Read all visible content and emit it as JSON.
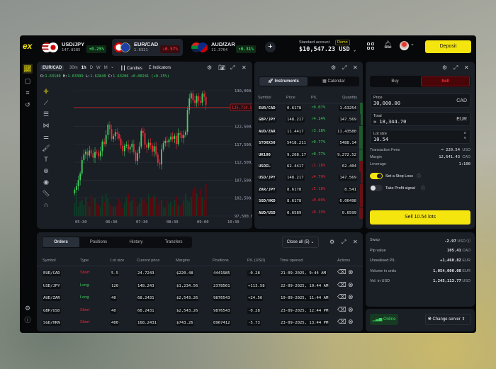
{
  "header": {
    "logo": "ex",
    "tickers": [
      {
        "symbol": "USD/JPY",
        "price": "147.8285",
        "change": "↑0.25%",
        "dir": "up",
        "active": false
      },
      {
        "symbol": "EUR/CAD",
        "price": "1.6321",
        "change": "↓0.57%",
        "dir": "down",
        "active": true
      },
      {
        "symbol": "AUD/ZAR",
        "price": "11.3764",
        "change": "↑0.31%",
        "dir": "up",
        "active": false
      }
    ],
    "add_icon": "plus-icon",
    "account_label": "Standard account",
    "account_badge": "Demo",
    "balance": "$10,547.23 USD",
    "deposit_label": "Deposit"
  },
  "colors": {
    "accent": "#f5e50f",
    "up": "#3ed35e",
    "down": "#ee2a36",
    "panel": "#1a1e25"
  },
  "chart": {
    "symbol": "EUR/CAD",
    "timeframes": [
      "30m",
      "1h",
      "D",
      "W",
      "M"
    ],
    "active_timeframe": "1h",
    "candles_label": "Candles",
    "indicators_label": "Indicators",
    "ohlc": {
      "o_label": "O:",
      "o": "1.63180",
      "h_label": "H:",
      "h": "1.63399",
      "l_label": "L:",
      "l": "1.62840",
      "c_label": "C:",
      "c": "1.63206",
      "change": "+0.00241 (+0.15%)"
    },
    "price_tag": "125,714.53"
  },
  "chart_data": {
    "type": "candlestick",
    "x_ticks": [
      "05:30",
      "06:30",
      "07:30",
      "08:30",
      "09:00",
      "10:30"
    ],
    "y_ticks": [
      "130,000.00",
      "",
      "122,500.00",
      "117,500.00",
      "112,500.00",
      "107,500.00",
      "102,500.00",
      "97,500.00"
    ],
    "ylim": [
      97500,
      130000
    ],
    "current_price": 125714.53,
    "closes": [
      104300,
      105200,
      106800,
      108500,
      112000,
      113500,
      114200,
      113200,
      114500,
      113800,
      112600,
      114100,
      113900,
      113000,
      114300,
      116800,
      116200,
      118500,
      121200,
      120000,
      117500,
      118200,
      119200,
      118800,
      117600,
      115800,
      114300,
      115700,
      116000,
      114800,
      115400,
      116200,
      114000,
      111800,
      113800,
      115500,
      119600,
      119000,
      116000,
      115200,
      116500,
      115800,
      114200,
      115600,
      113400,
      111300,
      110900,
      114800,
      116400,
      117000,
      116600,
      117300,
      118100,
      117500,
      118300,
      116200,
      119000,
      118600,
      117700,
      118500,
      119300,
      125000,
      128000,
      129300,
      127500,
      126800,
      128600,
      127300,
      126900,
      129200,
      128400,
      126300
    ],
    "volume": [
      40,
      70,
      30,
      45,
      50,
      35,
      60,
      45,
      30,
      65,
      55,
      55,
      40,
      35,
      30,
      65,
      45,
      70,
      55,
      40,
      30,
      30,
      30,
      35,
      55,
      45,
      25,
      40,
      60,
      70,
      45,
      50,
      60,
      45,
      30,
      40,
      55,
      50,
      55,
      40,
      70,
      55,
      60,
      65,
      60,
      35,
      50,
      50,
      30,
      25,
      50,
      40,
      45,
      30,
      50,
      60,
      35,
      30,
      40,
      50,
      70,
      50,
      45,
      60,
      80,
      90,
      70,
      60,
      85,
      60,
      50,
      100
    ]
  },
  "tools": [
    "crosshair-icon",
    "trendline-icon",
    "parallel-lines-icon",
    "pattern-icon",
    "sliders-icon",
    "brush-icon",
    "text-icon",
    "zoom-in-icon",
    "eye-icon",
    "ruler-icon",
    "magnet-icon"
  ],
  "instruments": {
    "tabs": [
      "Instruments",
      "Calendar"
    ],
    "columns": [
      "Symbol",
      "Price",
      "P/L",
      "Quantity"
    ],
    "rows": [
      {
        "symbol": "EUR/CAD",
        "price": "0.6178",
        "pl": "↑0.07%",
        "qty": "1.63254",
        "dir": "up",
        "depth": 0.7
      },
      {
        "symbol": "GBP/JPY",
        "price": "148.217",
        "pl": "↑4.14%",
        "qty": "147.569",
        "dir": "up",
        "depth": 0.5
      },
      {
        "symbol": "AUD/ZAR",
        "price": "11.4417",
        "pl": "↑3.18%",
        "qty": "11.43580",
        "dir": "up",
        "depth": 0.9
      },
      {
        "symbol": "STOXX50",
        "price": "5418.211",
        "pl": "↑0.77%",
        "qty": "5488.14",
        "dir": "up",
        "depth": 0.8
      },
      {
        "symbol": "UK100",
        "price": "9,268.17",
        "pl": "↑0.77%",
        "qty": "9,272.52",
        "dir": "up",
        "depth": 0.8
      },
      {
        "symbol": "USOIL",
        "price": "62.4417",
        "pl": "↓1.18%",
        "qty": "62.404",
        "dir": "down",
        "depth": 0.9
      },
      {
        "symbol": "USD/JPY",
        "price": "148.217",
        "pl": "↓4.79%",
        "qty": "147.569",
        "dir": "down",
        "depth": 0.5
      },
      {
        "symbol": "ZAR/JPY",
        "price": "8.6178",
        "pl": "↓5.18%",
        "qty": "8.541",
        "dir": "down",
        "depth": 0.7
      },
      {
        "symbol": "SGD/HKD",
        "price": "8.6178",
        "pl": "↓0.09%",
        "qty": "6.06498",
        "dir": "down",
        "depth": 0.6
      },
      {
        "symbol": "AUD/USD",
        "price": "0.6589",
        "pl": "↓0.13%",
        "qty": "0.6599",
        "dir": "down",
        "depth": 0.9
      }
    ]
  },
  "order_form": {
    "buy_label": "Buy",
    "sell_label": "Sell",
    "active_side": "Sell",
    "price_label": "Price",
    "price_value": "30,000.00",
    "price_ccy": "CAD",
    "total_label": "Total",
    "total_value": "≈ 18,344.70",
    "total_ccy": "EUR",
    "lot_label": "Lot size",
    "lot_value": "10.54",
    "fees_label": "Transaction Fees",
    "fees_value": "≈ 220.54",
    "fees_ccy": "USD",
    "margin_label": "Margin",
    "margin_value": "12,641.43",
    "margin_ccy": "CAD",
    "leverage_label": "Leverage",
    "leverage_value": "1:100",
    "stop_loss_label": "Set a Stop Loss",
    "stop_loss_on": true,
    "take_profit_label": "Take Profit signal",
    "take_profit_on": false,
    "submit_label": "Sell 10.54 lots"
  },
  "summary": [
    {
      "label": "Swap",
      "value": "-2.97",
      "ccy": "USD"
    },
    {
      "label": "Pip value",
      "value": "105.41",
      "ccy": "CAD"
    },
    {
      "label": "Unrealised P/L",
      "value": "+1,460.82",
      "ccy": "EUR"
    },
    {
      "label": "Volume in units",
      "value": "1,054,000.00",
      "ccy": "EUR"
    },
    {
      "label": "Vol. in USD",
      "value": "1,245,113.77",
      "ccy": "USD"
    }
  ],
  "status": {
    "online_label": "Online",
    "server_label": "Change server"
  },
  "orders": {
    "tabs": [
      "Orders",
      "Positions",
      "History",
      "Transfers"
    ],
    "close_all_label": "Close all (5)",
    "columns": [
      "Symbol",
      "Type",
      "Lot size",
      "Current price",
      "Margins",
      "Positions",
      "P/L (USD)",
      "Time opened",
      "Actions"
    ],
    "rows": [
      {
        "symbol": "EUR/CAD",
        "type": "Short",
        "lot": "5.5",
        "price": "24.7243",
        "margin": "$220.48",
        "position": "4441985",
        "pl": "-0.28",
        "time": "21-09-2025, 9:44 AM"
      },
      {
        "symbol": "USD/JPY",
        "type": "Long",
        "lot": "120",
        "price": "148.243",
        "margin": "$1,234.56",
        "position": "2378561",
        "pl": "+113.58",
        "time": "22-09-2025, 10:44 AM"
      },
      {
        "symbol": "AUD/ZAR",
        "type": "Long",
        "lot": "40",
        "price": "68.2431",
        "margin": "$2,543.26",
        "position": "9876543",
        "pl": "+24.56",
        "time": "19-09-2025, 11:44 AM"
      },
      {
        "symbol": "GBP/USD",
        "type": "Short",
        "lot": "40",
        "price": "68.2431",
        "margin": "$2,543.26",
        "position": "9876543",
        "pl": "-0.28",
        "time": "23-09-2025, 12:44 PM"
      },
      {
        "symbol": "SGD/HKN",
        "type": "Short",
        "lot": "400",
        "price": "168.2431",
        "margin": "$743.26",
        "position": "8967412",
        "pl": "-5.73",
        "time": "23-09-2025, 13:44 PM"
      }
    ]
  }
}
